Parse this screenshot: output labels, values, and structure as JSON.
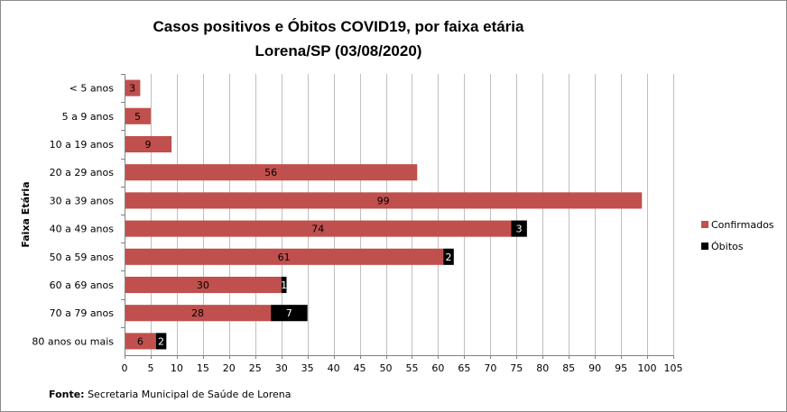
{
  "chart_data": {
    "type": "bar",
    "orientation": "horizontal",
    "stacked": true,
    "title_line1": "Casos positivos  e Óbitos COVID19, por faixa etária",
    "title_line2": "Lorena/SP (03/08/2020)",
    "xlabel": "",
    "ylabel": "Faixa Etária",
    "xlim": [
      0,
      105
    ],
    "xticks": [
      0,
      5,
      10,
      15,
      20,
      25,
      30,
      35,
      40,
      45,
      50,
      55,
      60,
      65,
      70,
      75,
      80,
      85,
      90,
      95,
      100,
      105
    ],
    "grid": "vertical",
    "legend_position": "right",
    "categories": [
      "< 5 anos",
      "5 a 9 anos",
      "10 a 19 anos",
      "20 a 29 anos",
      "30 a 39 anos",
      "40 a 49 anos",
      "50 a 59 anos",
      "60 a 69 anos",
      "70 a 79 anos",
      "80 anos ou mais"
    ],
    "series": [
      {
        "name": "Confirmados",
        "color": "#c0504d",
        "values": [
          3,
          5,
          9,
          56,
          99,
          74,
          61,
          30,
          28,
          6
        ]
      },
      {
        "name": "Óbitos",
        "color": "#000000",
        "values": [
          0,
          0,
          0,
          0,
          0,
          3,
          2,
          1,
          7,
          2
        ]
      }
    ],
    "source_label": "Fonte:",
    "source_text": " Secretaria Municipal de Saúde de Lorena"
  }
}
